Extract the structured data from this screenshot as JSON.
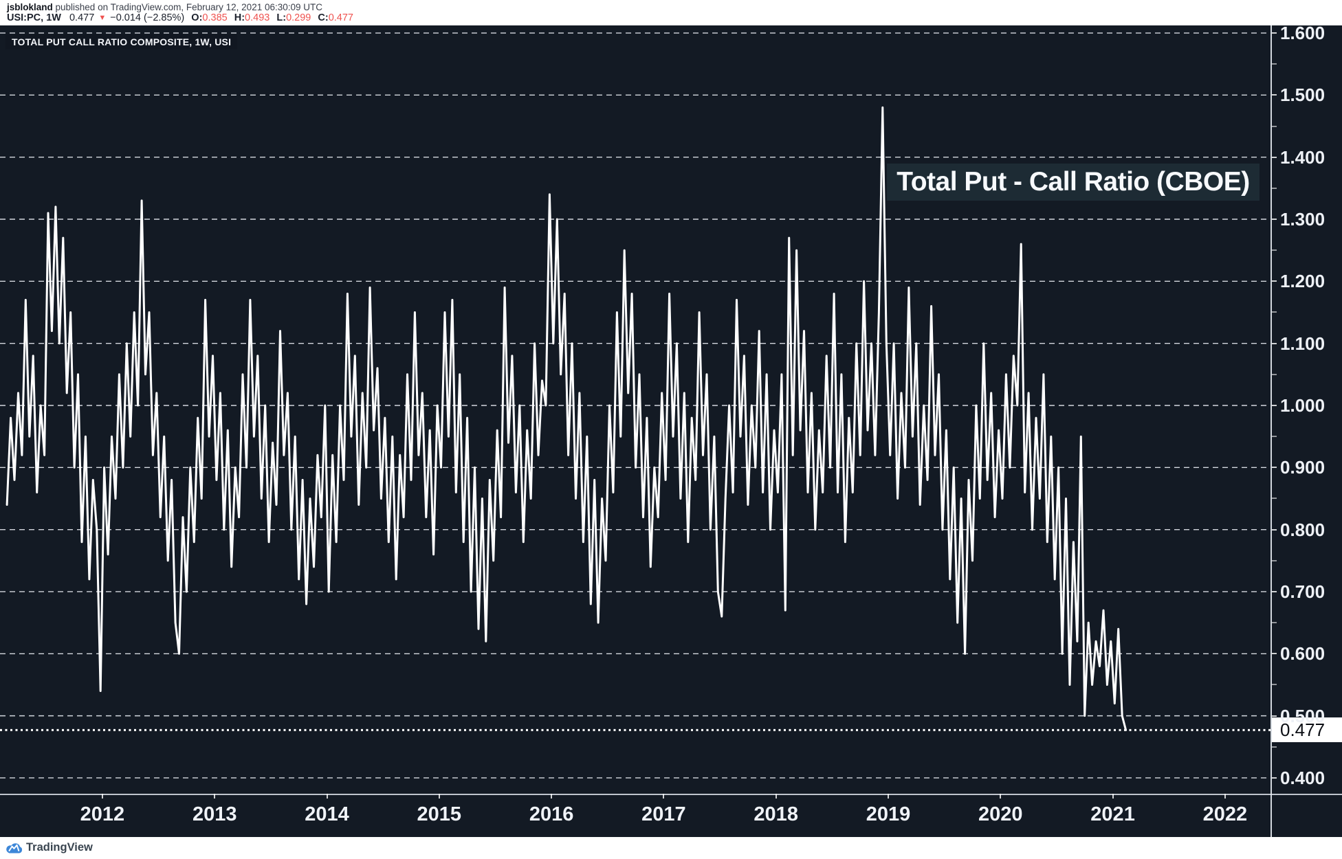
{
  "header": {
    "author": "jsblokland",
    "published": " published on TradingView.com, February 12, 2021 06:30:09 UTC",
    "symbol": "USI:PC, 1W",
    "last": "0.477",
    "down_arrow": "▼",
    "change": "−0.014 (−2.85%)",
    "o_label": "O:",
    "o_value": "0.385",
    "h_label": "H:",
    "h_value": "0.493",
    "l_label": "L:",
    "l_value": "0.299",
    "c_label": "C:",
    "c_value": "0.477"
  },
  "chart": {
    "legend": "TOTAL PUT CALL RATIO COMPOSITE, 1W, USI",
    "overlay_title": "Total Put - Call Ratio (CBOE)",
    "price_label": "0.477"
  },
  "colors": {
    "chart_bg": "#131a24",
    "line": "#ffffff",
    "grid": "#dfe3ea",
    "value_red": "#ef5350",
    "brand_blue": "#3d87d8",
    "price_label_bg": "#ffffff"
  },
  "footer": {
    "brand": "TradingView"
  },
  "chart_data": {
    "type": "line",
    "title": "Total Put - Call Ratio (CBOE)",
    "series_name": "TOTAL PUT CALL RATIO COMPOSITE, 1W, USI",
    "timeframe": "1W",
    "symbol": "USI:PC",
    "grid": "dashed",
    "x_years": [
      2012,
      2013,
      2014,
      2015,
      2016,
      2017,
      2018,
      2019,
      2020,
      2021,
      2022
    ],
    "y_ticks": [
      1.6,
      1.5,
      1.4,
      1.3,
      1.2,
      1.1,
      1.0,
      0.9,
      0.8,
      0.7,
      0.6,
      0.5,
      0.4
    ],
    "y_minor_step": 0.05,
    "x_range": [
      2011.088,
      2022.405
    ],
    "y_range": [
      0.3745,
      1.6122
    ],
    "last_value": 0.477,
    "series": [
      {
        "name": "TOTAL PUT CALL RATIO COMPOSITE, 1W, USI",
        "t_start": 2011.15,
        "t_step": 0.0333333,
        "values": [
          0.84,
          0.98,
          0.88,
          1.02,
          0.92,
          1.17,
          0.95,
          1.08,
          0.86,
          1.0,
          0.92,
          1.31,
          1.12,
          1.32,
          1.1,
          1.27,
          1.02,
          1.15,
          0.9,
          1.05,
          0.78,
          0.95,
          0.72,
          0.88,
          0.8,
          0.54,
          0.9,
          0.76,
          0.95,
          0.85,
          1.05,
          0.9,
          1.1,
          0.95,
          1.15,
          1.0,
          1.33,
          1.05,
          1.15,
          0.92,
          1.02,
          0.82,
          0.95,
          0.75,
          0.88,
          0.65,
          0.6,
          0.82,
          0.7,
          0.9,
          0.78,
          0.98,
          0.85,
          1.17,
          0.95,
          1.08,
          0.88,
          1.02,
          0.8,
          0.96,
          0.74,
          0.9,
          0.82,
          1.05,
          0.9,
          1.17,
          0.95,
          1.08,
          0.85,
          1.0,
          0.78,
          0.94,
          0.84,
          1.12,
          0.92,
          1.02,
          0.8,
          0.95,
          0.72,
          0.88,
          0.68,
          0.85,
          0.74,
          0.92,
          0.82,
          1.0,
          0.7,
          0.92,
          0.78,
          1.0,
          0.88,
          1.18,
          0.95,
          1.08,
          0.84,
          1.02,
          0.9,
          1.19,
          0.96,
          1.06,
          0.85,
          0.98,
          0.78,
          0.95,
          0.72,
          0.92,
          0.82,
          1.05,
          0.88,
          1.15,
          0.92,
          1.02,
          0.82,
          0.96,
          0.76,
          1.0,
          0.9,
          1.15,
          0.95,
          1.17,
          0.86,
          1.05,
          0.78,
          0.98,
          0.7,
          0.9,
          0.64,
          0.85,
          0.62,
          0.88,
          0.75,
          0.96,
          0.82,
          1.19,
          0.94,
          1.08,
          0.86,
          1.0,
          0.78,
          0.96,
          0.85,
          1.1,
          0.92,
          1.04,
          1.0,
          1.34,
          1.1,
          1.3,
          1.05,
          1.18,
          0.92,
          1.1,
          0.85,
          1.02,
          0.78,
          0.95,
          0.68,
          0.88,
          0.65,
          0.85,
          0.75,
          1.0,
          0.86,
          1.15,
          0.95,
          1.25,
          1.02,
          1.18,
          0.9,
          1.05,
          0.82,
          0.98,
          0.74,
          0.9,
          0.82,
          1.02,
          0.88,
          1.18,
          0.95,
          1.1,
          0.85,
          1.02,
          0.78,
          0.98,
          0.88,
          1.15,
          0.92,
          1.05,
          0.8,
          0.95,
          0.7,
          0.66,
          0.85,
          1.0,
          0.86,
          1.17,
          0.95,
          1.08,
          0.84,
          1.0,
          0.9,
          1.12,
          0.86,
          1.05,
          0.8,
          0.96,
          0.86,
          1.05,
          0.67,
          1.27,
          0.92,
          1.25,
          0.96,
          1.12,
          0.86,
          1.02,
          0.8,
          0.96,
          0.86,
          1.08,
          0.9,
          1.18,
          0.86,
          1.05,
          0.78,
          0.98,
          0.86,
          1.1,
          0.92,
          1.2,
          0.96,
          1.1,
          0.92,
          1.15,
          1.48,
          1.1,
          0.92,
          1.1,
          0.85,
          1.02,
          0.9,
          1.19,
          0.95,
          1.1,
          0.84,
          1.0,
          0.88,
          1.16,
          0.92,
          1.05,
          0.8,
          0.96,
          0.72,
          0.9,
          0.65,
          0.85,
          0.6,
          0.88,
          0.75,
          1.0,
          0.85,
          1.1,
          0.88,
          1.02,
          0.82,
          0.96,
          0.85,
          1.05,
          0.9,
          1.08,
          1.0,
          1.26,
          0.86,
          1.02,
          0.8,
          0.98,
          0.85,
          1.05,
          0.78,
          0.95,
          0.72,
          0.9,
          0.6,
          0.85,
          0.55,
          0.78,
          0.62,
          0.95,
          0.5,
          0.65,
          0.55,
          0.62,
          0.58,
          0.67,
          0.55,
          0.62,
          0.52,
          0.64,
          0.5,
          0.477
        ]
      }
    ]
  }
}
